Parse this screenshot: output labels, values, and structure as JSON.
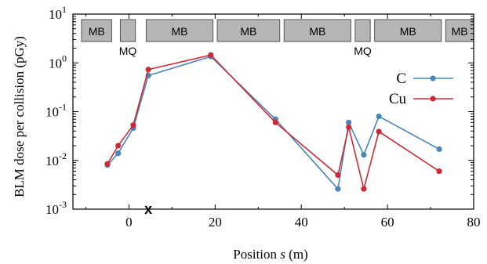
{
  "chart_data": {
    "type": "line",
    "xlabel_prefix": "Position ",
    "xlabel_var": "s",
    "xlabel_suffix": " (m)",
    "ylabel": "BLM dose per collision (pGy)",
    "xlim": [
      -13,
      80
    ],
    "ylim_log10": [
      -3,
      1
    ],
    "yscale": "log",
    "x_ticks": [
      0,
      20,
      40,
      60,
      80
    ],
    "x_tick_labels": [
      "0",
      "20",
      "40",
      "60",
      "80"
    ],
    "y_ticks": [
      0.001,
      0.01,
      0.1,
      1,
      10
    ],
    "y_tick_exponents": [
      "-3",
      "-2",
      "-1",
      "0",
      "1"
    ],
    "y_tick_base": "10",
    "legend": {
      "position": "right"
    },
    "series": [
      {
        "name": "C",
        "color": "#4a86b8",
        "x": [
          -5,
          -2.5,
          1,
          4.5,
          19,
          34,
          48.5,
          51,
          54.5,
          58,
          72
        ],
        "y": [
          0.008,
          0.014,
          0.046,
          0.55,
          1.35,
          0.07,
          0.0026,
          0.06,
          0.013,
          0.08,
          0.017
        ]
      },
      {
        "name": "Cu",
        "color": "#cc2a36",
        "x": [
          -5,
          -2.5,
          1,
          4.5,
          19,
          34,
          48.5,
          51,
          54.5,
          58,
          72
        ],
        "y": [
          0.0085,
          0.02,
          0.053,
          0.73,
          1.45,
          0.06,
          0.005,
          0.048,
          0.0026,
          0.039,
          0.006
        ]
      }
    ],
    "beamline_elements": [
      {
        "label": "MB",
        "x0": -11,
        "x1": -4,
        "label_position": "inside"
      },
      {
        "label": "MQ",
        "x0": -2,
        "x1": 1.5,
        "label_position": "below"
      },
      {
        "label": "MB",
        "x0": 4,
        "x1": 19.5,
        "label_position": "inside"
      },
      {
        "label": "MB",
        "x0": 20.5,
        "x1": 35,
        "label_position": "inside"
      },
      {
        "label": "MB",
        "x0": 36,
        "x1": 51.5,
        "label_position": "inside"
      },
      {
        "label": "MQ",
        "x0": 52.5,
        "x1": 56,
        "label_position": "below"
      },
      {
        "label": "MB",
        "x0": 57,
        "x1": 72.5,
        "label_position": "inside"
      },
      {
        "label": "MB",
        "x0": 73.5,
        "x1": 80,
        "label_position": "inside"
      }
    ],
    "annotations": [
      {
        "text": "x",
        "x": 4.5,
        "y": 0.001
      }
    ]
  }
}
